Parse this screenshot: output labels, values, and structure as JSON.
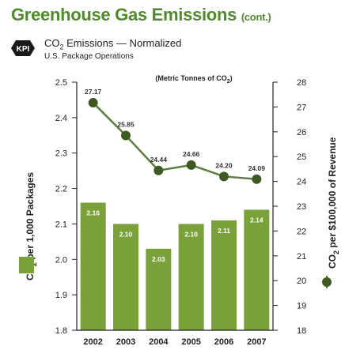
{
  "header": {
    "title": "Greenhouse Gas Emissions",
    "title_suffix": "(cont.)",
    "badge": "KPI",
    "subtitle_prefix": "CO",
    "subtitle_sub": "2",
    "subtitle_rest": " Emissions — Normalized",
    "subsubtitle": "U.S. Package Operations"
  },
  "colors": {
    "title": "#4f8a2c",
    "bar": "#7aa13a",
    "line": "#5f7d3f",
    "marker": "#3e5a22",
    "badge": "#1a1a1a"
  },
  "chart_data": {
    "type": "bar",
    "categories": [
      "2002",
      "2003",
      "2004",
      "2005",
      "2006",
      "2007"
    ],
    "series": [
      {
        "kind": "bar",
        "axis": "left",
        "values": [
          2.16,
          2.1,
          2.03,
          2.1,
          2.11,
          2.14
        ],
        "labels": [
          "2.16",
          "2.10",
          "2.03",
          "2.10",
          "2.11",
          "2.14"
        ]
      },
      {
        "kind": "line",
        "axis": "right",
        "values": [
          27.17,
          25.85,
          24.44,
          24.66,
          24.2,
          24.09
        ],
        "labels": [
          "27.17",
          "25.85",
          "24.44",
          "24.66",
          "24.20",
          "24.09"
        ]
      }
    ],
    "left_axis": {
      "label_prefix": "CO",
      "label_sub": "2",
      "label_rest": " per 1,000 Packages",
      "ylim": [
        1.8,
        2.5
      ],
      "ticks": [
        "1.8",
        "1.9",
        "2.0",
        "2.1",
        "2.2",
        "2.3",
        "2.4",
        "2.5"
      ]
    },
    "right_axis": {
      "label_prefix": "CO",
      "label_sub": "2",
      "label_rest": " per $100,000 of Revenue",
      "ylim": [
        18,
        28
      ],
      "ticks": [
        "18",
        "19",
        "20",
        "21",
        "22",
        "23",
        "24",
        "25",
        "26",
        "27",
        "28"
      ]
    },
    "annotation_prefix": "(Metric Tonnes of CO",
    "annotation_sub": "2",
    "annotation_suffix": ")",
    "legend": "left-middle and right-middle markers"
  }
}
